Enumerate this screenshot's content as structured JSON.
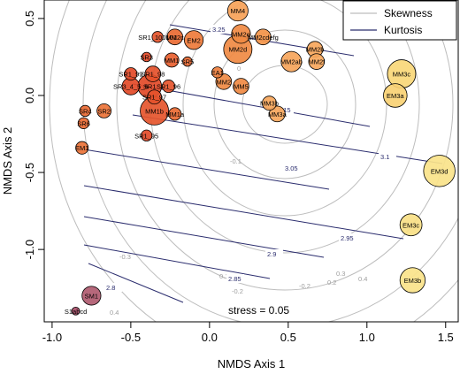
{
  "chart_data": {
    "type": "scatter",
    "xlabel": "NMDS Axis 1",
    "ylabel": "NMDS Axis 2",
    "xlim": [
      -1.05,
      1.58
    ],
    "ylim": [
      -1.47,
      0.62
    ],
    "x_ticks": [
      "-1.0",
      "-0.5",
      "0.0",
      "0.5",
      "1.0",
      "1.5"
    ],
    "x_tick_values": [
      -1.0,
      -0.5,
      0.0,
      0.5,
      1.0,
      1.5
    ],
    "y_ticks": [
      "-1.0",
      "-0.5",
      "0.0",
      "0.5"
    ],
    "y_tick_values": [
      -1.0,
      -0.5,
      0.0,
      0.5
    ],
    "grid": false,
    "legend": {
      "position": "top-right",
      "entries": [
        {
          "label": "Skewness",
          "color": "#bdbdbd"
        },
        {
          "label": "Kurtosis",
          "color": "#2b2d6e"
        }
      ]
    },
    "annotation": "stress = 0.05",
    "skewness_contour_labels": [
      "-0.1",
      "0",
      "-0.1",
      "0.1",
      "-0.2",
      "0.2",
      "0.3",
      "0.4",
      "-0.3",
      "0.4",
      "-0.3",
      "-0.2"
    ],
    "kurtosis_contours": [
      {
        "label": "3.25"
      },
      {
        "label": "3.15"
      },
      {
        "label": "3.1"
      },
      {
        "label": "3.05"
      },
      {
        "label": "2.95"
      },
      {
        "label": "2.9"
      },
      {
        "label": "2.85"
      },
      {
        "label": "2.8"
      }
    ],
    "points": [
      {
        "label": "MM4",
        "x": 0.18,
        "y": 0.55,
        "r": 0.065,
        "color": "#f7a258"
      },
      {
        "label": "SR1_100101",
        "x": -0.33,
        "y": 0.38,
        "r": 0.035,
        "color": "#e5552c"
      },
      {
        "label": "MM2c",
        "x": -0.22,
        "y": 0.38,
        "r": 0.05,
        "color": "#e96a32"
      },
      {
        "label": "EM2",
        "x": -0.1,
        "y": 0.36,
        "r": 0.06,
        "color": "#ee7b3b"
      },
      {
        "label": "MM2e",
        "x": 0.2,
        "y": 0.4,
        "r": 0.06,
        "color": "#f08a43"
      },
      {
        "label": "MM2cdefg",
        "x": 0.34,
        "y": 0.38,
        "r": 0.05,
        "color": "#f39448"
      },
      {
        "label": "MM2d",
        "x": 0.18,
        "y": 0.3,
        "r": 0.09,
        "color": "#f08a43"
      },
      {
        "label": "MM2b",
        "x": 0.67,
        "y": 0.3,
        "r": 0.05,
        "color": "#f7a75c"
      },
      {
        "label": "MM2f",
        "x": 0.68,
        "y": 0.22,
        "r": 0.05,
        "color": "#f7a75c"
      },
      {
        "label": "MM2ab",
        "x": 0.52,
        "y": 0.22,
        "r": 0.065,
        "color": "#f6a55b"
      },
      {
        "label": "SR3",
        "x": -0.4,
        "y": 0.25,
        "r": 0.03,
        "color": "#e34a28"
      },
      {
        "label": "MM1",
        "x": -0.24,
        "y": 0.23,
        "r": 0.045,
        "color": "#e85f2f"
      },
      {
        "label": "SR5",
        "x": -0.14,
        "y": 0.22,
        "r": 0.03,
        "color": "#ea6a33"
      },
      {
        "label": "SR1_98",
        "x": -0.36,
        "y": 0.14,
        "r": 0.05,
        "color": "#e4512b"
      },
      {
        "label": "EA1",
        "x": 0.05,
        "y": 0.15,
        "r": 0.035,
        "color": "#ee7f3e"
      },
      {
        "label": "SR1_99",
        "x": -0.5,
        "y": 0.14,
        "r": 0.04,
        "color": "#e34a28"
      },
      {
        "label": "MM2",
        "x": 0.09,
        "y": 0.09,
        "r": 0.05,
        "color": "#f08a43"
      },
      {
        "label": "MM5",
        "x": 0.2,
        "y": 0.06,
        "r": 0.05,
        "color": "#f08a43"
      },
      {
        "label": "SR3_4_5_6",
        "x": -0.5,
        "y": 0.06,
        "r": 0.055,
        "color": "#e34a28"
      },
      {
        "label": "SR1",
        "x": -0.38,
        "y": 0.06,
        "r": 0.075,
        "color": "#e24a28"
      },
      {
        "label": "SR1_96",
        "x": -0.26,
        "y": 0.06,
        "r": 0.04,
        "color": "#e5552c"
      },
      {
        "label": "SR1_97",
        "x": -0.35,
        "y": -0.01,
        "r": 0.045,
        "color": "#e4512b"
      },
      {
        "label": "MM3c",
        "x": 1.22,
        "y": 0.14,
        "r": 0.09,
        "color": "#f8d778"
      },
      {
        "label": "EM3a",
        "x": 1.18,
        "y": 0.0,
        "r": 0.075,
        "color": "#f8d174"
      },
      {
        "label": "MM3b",
        "x": 0.38,
        "y": -0.05,
        "r": 0.045,
        "color": "#f7a75c"
      },
      {
        "label": "MM3a",
        "x": 0.43,
        "y": -0.12,
        "r": 0.05,
        "color": "#f7a75c"
      },
      {
        "label": "SR4",
        "x": -0.79,
        "y": -0.1,
        "r": 0.035,
        "color": "#ea6a33"
      },
      {
        "label": "SR2",
        "x": -0.67,
        "y": -0.1,
        "r": 0.045,
        "color": "#ec7338"
      },
      {
        "label": "MM1b",
        "x": -0.35,
        "y": -0.1,
        "r": 0.09,
        "color": "#e5552c"
      },
      {
        "label": "MM1a",
        "x": -0.22,
        "y": -0.12,
        "r": 0.04,
        "color": "#e96a32"
      },
      {
        "label": "SR6",
        "x": -0.8,
        "y": -0.18,
        "r": 0.035,
        "color": "#ea6a33"
      },
      {
        "label": "SR1_95",
        "x": -0.4,
        "y": -0.26,
        "r": 0.035,
        "color": "#e34a28"
      },
      {
        "label": "EM1",
        "x": -0.81,
        "y": -0.34,
        "r": 0.04,
        "color": "#ec7338"
      },
      {
        "label": "EM3d",
        "x": 1.46,
        "y": -0.49,
        "r": 0.1,
        "color": "#fae38a"
      },
      {
        "label": "EM3c",
        "x": 1.28,
        "y": -0.84,
        "r": 0.07,
        "color": "#f9df85"
      },
      {
        "label": "EM3b",
        "x": 1.29,
        "y": -1.2,
        "r": 0.08,
        "color": "#fae38a"
      },
      {
        "label": "SM1",
        "x": -0.75,
        "y": -1.3,
        "r": 0.06,
        "color": "#b05b70"
      },
      {
        "label": "S1abcd",
        "x": -0.85,
        "y": -1.4,
        "r": 0.025,
        "color": "#a84d68"
      }
    ]
  }
}
